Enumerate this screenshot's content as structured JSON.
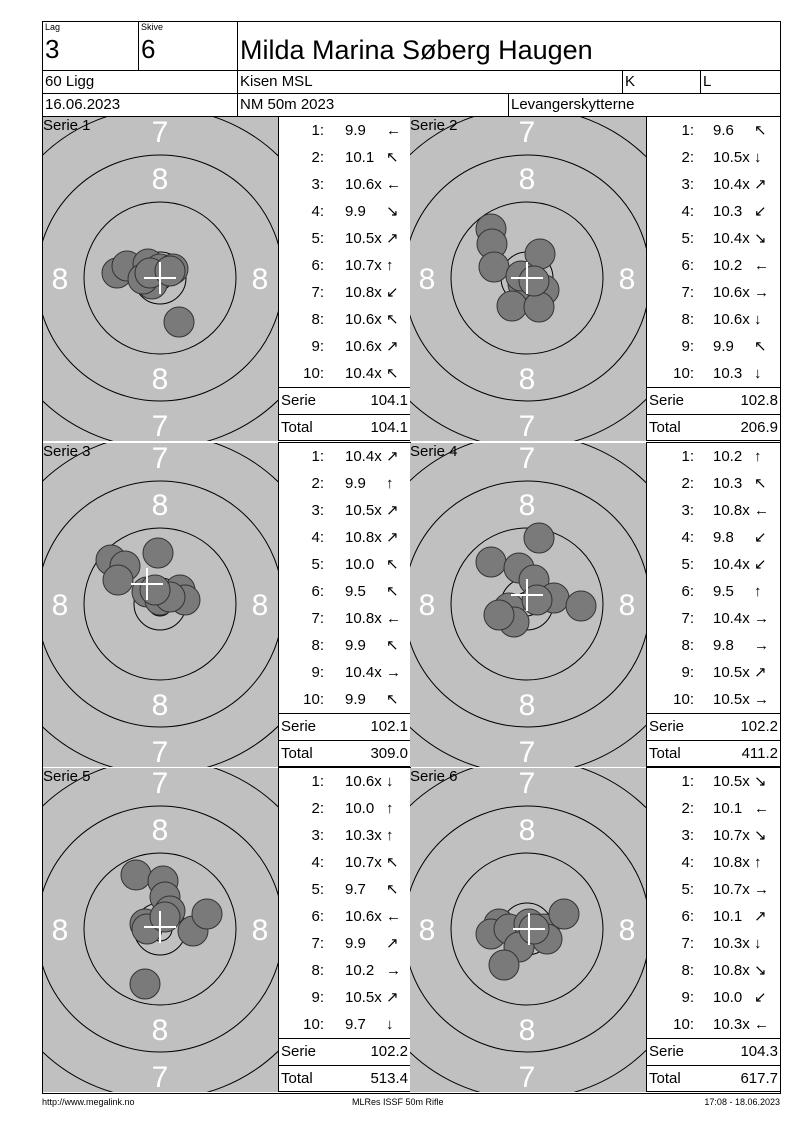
{
  "header": {
    "lag_label": "Lag",
    "lag": "3",
    "skive_label": "Skive",
    "skive": "6",
    "name": "Milda Marina Søberg Haugen",
    "program": "60 Ligg",
    "club": "Kisen MSL",
    "k": "K",
    "l": "L",
    "date": "16.06.2023",
    "event": "NM 50m 2023",
    "organizer": "Levangerskytterne"
  },
  "colors": {
    "target_bg": "#c0c0c0",
    "shot": "#7a7a7a"
  },
  "ring_labels": {
    "seven": "7",
    "eight": "8"
  },
  "series": [
    {
      "label": "Serie 1",
      "shots": [
        {
          "n": "1:",
          "s": "9.9",
          "a": "←"
        },
        {
          "n": "2:",
          "s": "10.1",
          "a": "↖"
        },
        {
          "n": "3:",
          "s": "10.6x",
          "a": "←"
        },
        {
          "n": "4:",
          "s": "9.9",
          "a": "↘"
        },
        {
          "n": "5:",
          "s": "10.5x",
          "a": "↗"
        },
        {
          "n": "6:",
          "s": "10.7x",
          "a": "↑"
        },
        {
          "n": "7:",
          "s": "10.8x",
          "a": "↙"
        },
        {
          "n": "8:",
          "s": "10.6x",
          "a": "↖"
        },
        {
          "n": "9:",
          "s": "10.6x",
          "a": "↗"
        },
        {
          "n": "10:",
          "s": "10.4x",
          "a": "↖"
        }
      ],
      "serie_label": "Serie",
      "serie": "104.1",
      "total_label": "Total",
      "total": "104.1"
    },
    {
      "label": "Serie 2",
      "shots": [
        {
          "n": "1:",
          "s": "9.6",
          "a": "↖"
        },
        {
          "n": "2:",
          "s": "10.5x",
          "a": "↓"
        },
        {
          "n": "3:",
          "s": "10.4x",
          "a": "↗"
        },
        {
          "n": "4:",
          "s": "10.3",
          "a": "↙"
        },
        {
          "n": "5:",
          "s": "10.4x",
          "a": "↘"
        },
        {
          "n": "6:",
          "s": "10.2",
          "a": "←"
        },
        {
          "n": "7:",
          "s": "10.6x",
          "a": "→"
        },
        {
          "n": "8:",
          "s": "10.6x",
          "a": "↓"
        },
        {
          "n": "9:",
          "s": "9.9",
          "a": "↖"
        },
        {
          "n": "10:",
          "s": "10.3",
          "a": "↓"
        }
      ],
      "serie_label": "Serie",
      "serie": "102.8",
      "total_label": "Total",
      "total": "206.9"
    },
    {
      "label": "Serie 3",
      "shots": [
        {
          "n": "1:",
          "s": "10.4x",
          "a": "↗"
        },
        {
          "n": "2:",
          "s": "9.9",
          "a": "↑"
        },
        {
          "n": "3:",
          "s": "10.5x",
          "a": "↗"
        },
        {
          "n": "4:",
          "s": "10.8x",
          "a": "↗"
        },
        {
          "n": "5:",
          "s": "10.0",
          "a": "↖"
        },
        {
          "n": "6:",
          "s": "9.5",
          "a": "↖"
        },
        {
          "n": "7:",
          "s": "10.8x",
          "a": "←"
        },
        {
          "n": "8:",
          "s": "9.9",
          "a": "↖"
        },
        {
          "n": "9:",
          "s": "10.4x",
          "a": "→"
        },
        {
          "n": "10:",
          "s": "9.9",
          "a": "↖"
        }
      ],
      "serie_label": "Serie",
      "serie": "102.1",
      "total_label": "Total",
      "total": "309.0"
    },
    {
      "label": "Serie 4",
      "shots": [
        {
          "n": "1:",
          "s": "10.2",
          "a": "↑"
        },
        {
          "n": "2:",
          "s": "10.3",
          "a": "↖"
        },
        {
          "n": "3:",
          "s": "10.8x",
          "a": "←"
        },
        {
          "n": "4:",
          "s": "9.8",
          "a": "↙"
        },
        {
          "n": "5:",
          "s": "10.4x",
          "a": "↙"
        },
        {
          "n": "6:",
          "s": "9.5",
          "a": "↑"
        },
        {
          "n": "7:",
          "s": "10.4x",
          "a": "→"
        },
        {
          "n": "8:",
          "s": "9.8",
          "a": "→"
        },
        {
          "n": "9:",
          "s": "10.5x",
          "a": "↗"
        },
        {
          "n": "10:",
          "s": "10.5x",
          "a": "→"
        }
      ],
      "serie_label": "Serie",
      "serie": "102.2",
      "total_label": "Total",
      "total": "411.2"
    },
    {
      "label": "Serie 5",
      "shots": [
        {
          "n": "1:",
          "s": "10.6x",
          "a": "↓"
        },
        {
          "n": "2:",
          "s": "10.0",
          "a": "↑"
        },
        {
          "n": "3:",
          "s": "10.3x",
          "a": "↑"
        },
        {
          "n": "4:",
          "s": "10.7x",
          "a": "↖"
        },
        {
          "n": "5:",
          "s": "9.7",
          "a": "↖"
        },
        {
          "n": "6:",
          "s": "10.6x",
          "a": "←"
        },
        {
          "n": "7:",
          "s": "9.9",
          "a": "↗"
        },
        {
          "n": "8:",
          "s": "10.2",
          "a": "→"
        },
        {
          "n": "9:",
          "s": "10.5x",
          "a": "↗"
        },
        {
          "n": "10:",
          "s": "9.7",
          "a": "↓"
        }
      ],
      "serie_label": "Serie",
      "serie": "102.2",
      "total_label": "Total",
      "total": "513.4"
    },
    {
      "label": "Serie 6",
      "shots": [
        {
          "n": "1:",
          "s": "10.5x",
          "a": "↘"
        },
        {
          "n": "2:",
          "s": "10.1",
          "a": "←"
        },
        {
          "n": "3:",
          "s": "10.7x",
          "a": "↘"
        },
        {
          "n": "4:",
          "s": "10.8x",
          "a": "↑"
        },
        {
          "n": "5:",
          "s": "10.7x",
          "a": "→"
        },
        {
          "n": "6:",
          "s": "10.1",
          "a": "↗"
        },
        {
          "n": "7:",
          "s": "10.3x",
          "a": "↓"
        },
        {
          "n": "8:",
          "s": "10.8x",
          "a": "↘"
        },
        {
          "n": "9:",
          "s": "10.0",
          "a": "↙"
        },
        {
          "n": "10:",
          "s": "10.3x",
          "a": "←"
        }
      ],
      "serie_label": "Serie",
      "serie": "104.3",
      "total_label": "Total",
      "total": "617.7"
    }
  ],
  "footer": {
    "url": "http://www.megalink.no",
    "software": "MLRes ISSF 50m Rifle",
    "timestamp": "17:08 - 18.06.2023"
  }
}
